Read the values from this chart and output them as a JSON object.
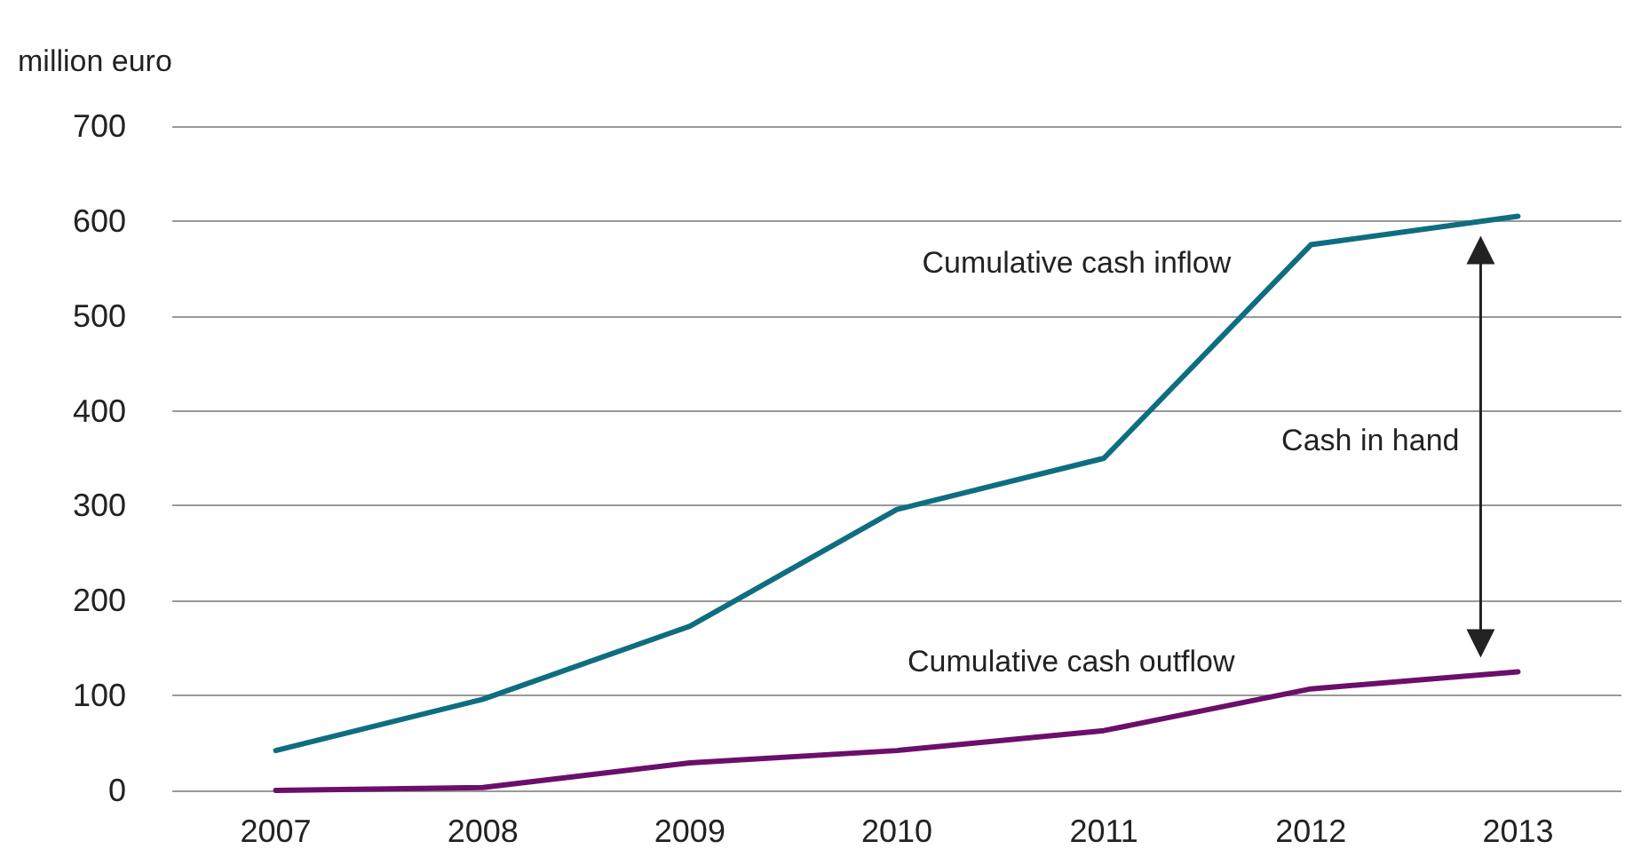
{
  "chart_data": {
    "type": "line",
    "ylabel": "million euro",
    "categories": [
      "2007",
      "2008",
      "2009",
      "2010",
      "2011",
      "2012",
      "2013"
    ],
    "series": [
      {
        "name": "Cumulative cash inflow",
        "color": "#0e6e80",
        "values": [
          42,
          96,
          173,
          296,
          350,
          575,
          605
        ]
      },
      {
        "name": "Cumulative cash outflow",
        "color": "#6b0f6b",
        "values": [
          0,
          3,
          29,
          42,
          63,
          107,
          125
        ]
      }
    ],
    "ylim": [
      0,
      700
    ],
    "yticks": [
      0,
      100,
      200,
      300,
      400,
      500,
      600,
      700
    ],
    "annotations": [
      "Cash in hand"
    ],
    "grid": "y",
    "legend": false,
    "marker": "none",
    "line_style": "solid"
  }
}
